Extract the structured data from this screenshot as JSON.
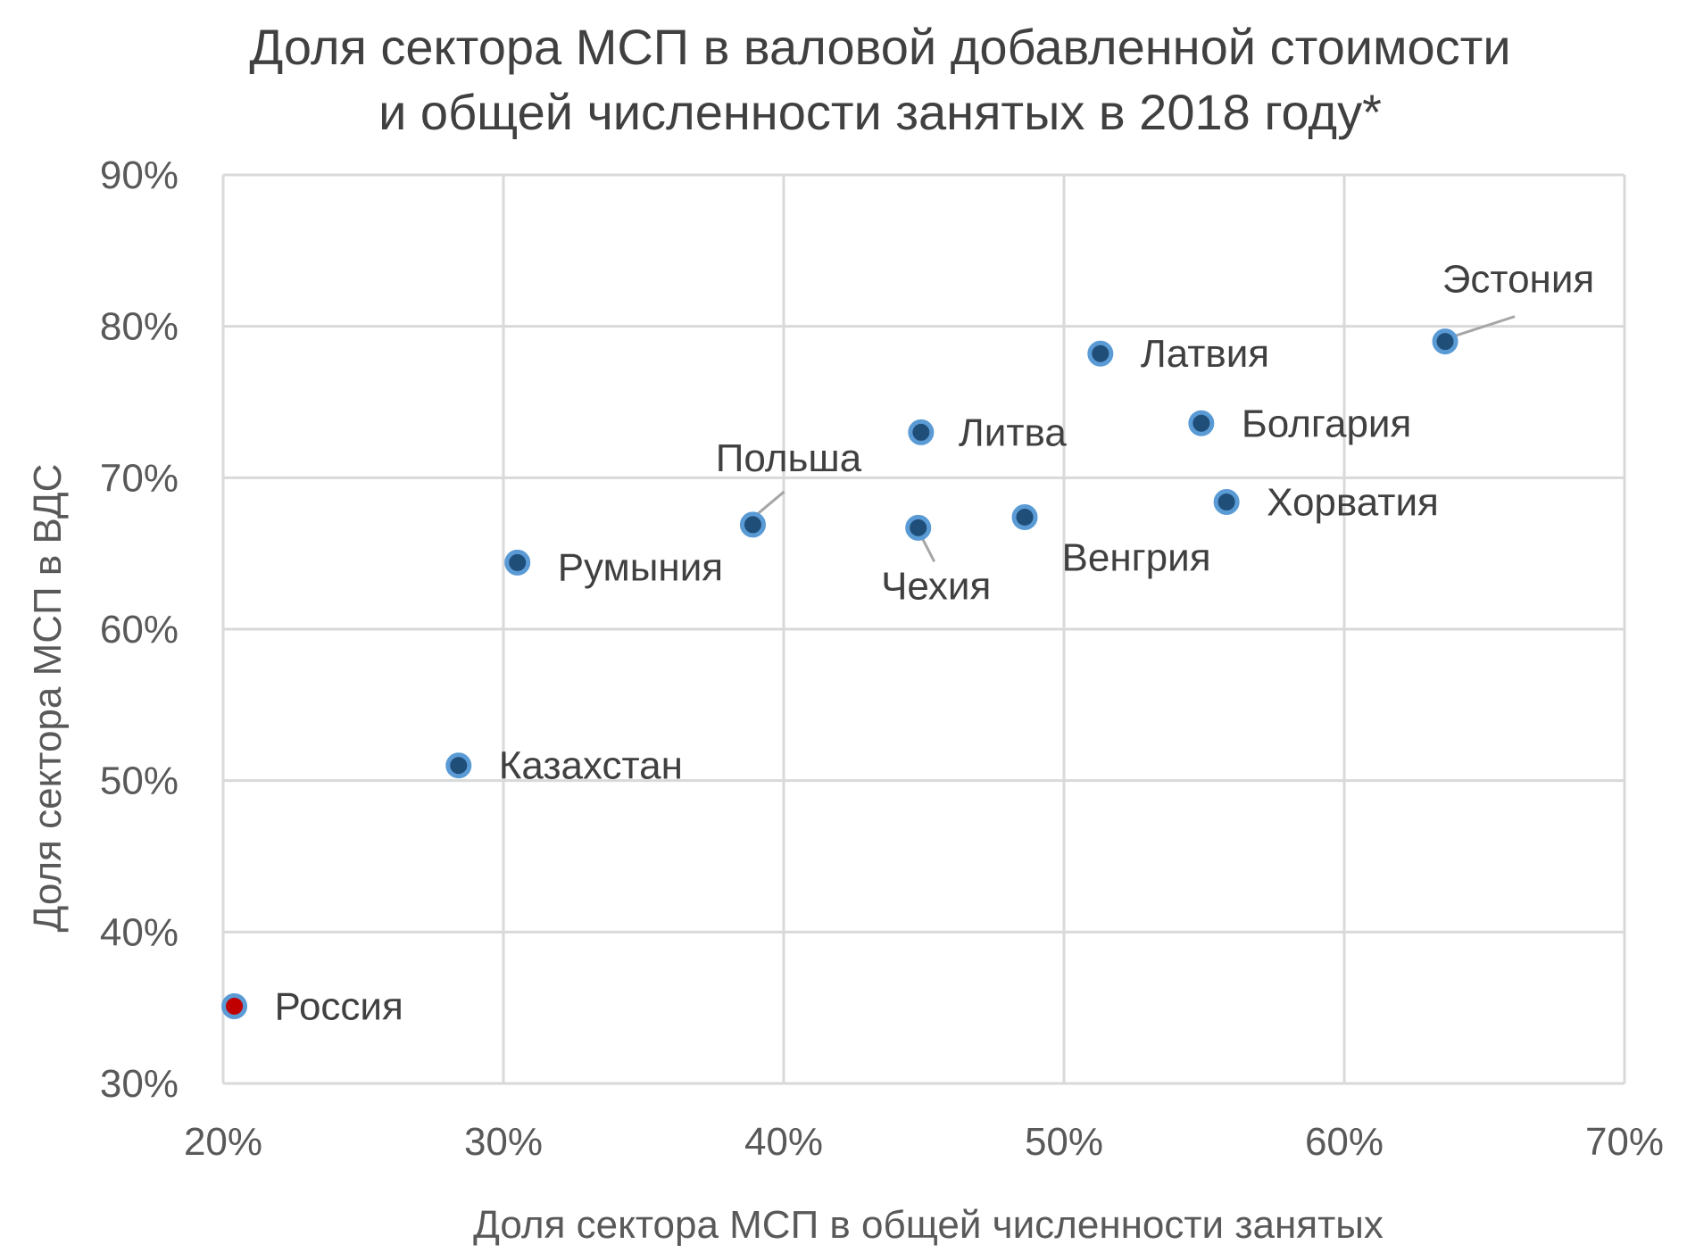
{
  "chart_data": {
    "type": "scatter",
    "title_lines": [
      "Доля сектора МСП в валовой добавленной стоимости",
      "и общей численности занятых в 2018 году*"
    ],
    "xlabel": "Доля сектора МСП в общей численности занятых",
    "ylabel": "Доля сектора МСП в ВДС",
    "xlim": [
      20,
      70
    ],
    "ylim": [
      30,
      90
    ],
    "x_ticks": [
      "20%",
      "30%",
      "40%",
      "50%",
      "60%",
      "70%"
    ],
    "y_ticks": [
      "30%",
      "40%",
      "50%",
      "60%",
      "70%",
      "80%",
      "90%"
    ],
    "grid": true,
    "points": [
      {
        "label": "Россия",
        "x": 20.4,
        "y": 35.1,
        "color": "#c00000"
      },
      {
        "label": "Казахстан",
        "x": 28.4,
        "y": 51.0,
        "color": "#1f4e79"
      },
      {
        "label": "Румыния",
        "x": 30.5,
        "y": 64.4,
        "color": "#1f4e79"
      },
      {
        "label": "Польша",
        "x": 38.9,
        "y": 66.9,
        "color": "#1f4e79"
      },
      {
        "label": "Чехия",
        "x": 44.8,
        "y": 66.7,
        "color": "#1f4e79"
      },
      {
        "label": "Литва",
        "x": 44.9,
        "y": 73.0,
        "color": "#1f4e79"
      },
      {
        "label": "Венгрия",
        "x": 48.6,
        "y": 67.4,
        "color": "#1f4e79"
      },
      {
        "label": "Латвия",
        "x": 51.3,
        "y": 78.2,
        "color": "#1f4e79"
      },
      {
        "label": "Болгария",
        "x": 54.9,
        "y": 73.6,
        "color": "#1f4e79"
      },
      {
        "label": "Хорватия",
        "x": 55.8,
        "y": 68.4,
        "color": "#1f4e79"
      },
      {
        "label": "Эстония",
        "x": 63.6,
        "y": 79.0,
        "color": "#1f4e79"
      }
    ],
    "marker_outline_color": "#5b9bd5"
  }
}
